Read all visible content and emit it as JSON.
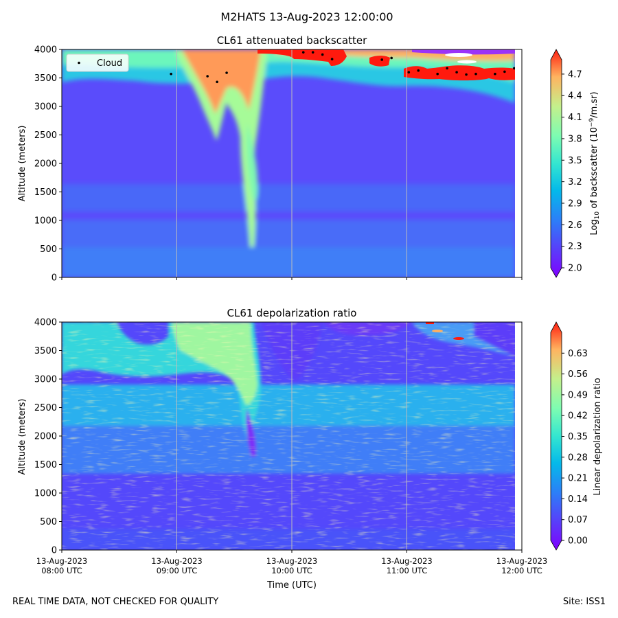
{
  "figure_title": "M2HATS 13-Aug-2023 12:00:00",
  "footer": {
    "left": "REAL TIME DATA, NOT CHECKED FOR QUALITY",
    "right": "Site: ISS1"
  },
  "chart_data": [
    {
      "type": "heatmap",
      "title": "CL61 attenuated backscatter",
      "ylabel": "Altitude (meters)",
      "ylim": [
        0,
        4000
      ],
      "yticks": [
        "0",
        "500",
        "1000",
        "1500",
        "2000",
        "2500",
        "3000",
        "3500",
        "4000"
      ],
      "x_start": "2023-08-13T08:00:00Z",
      "x_end": "2023-08-13T12:00:00Z",
      "data_end": "2023-08-13T11:56:00Z",
      "grid": "vertical lines at each hour",
      "legend": {
        "entries": [
          "Cloud"
        ],
        "position": "upper-left"
      },
      "colorbar": {
        "label_prefix": "Log",
        "label_sub": "10",
        "label_mid": " of backscatter (10",
        "label_sup": "−9",
        "label_suffix": "/m.sr)",
        "range": [
          2.0,
          4.9
        ],
        "ticks": [
          "2.0",
          "2.3",
          "2.6",
          "2.9",
          "3.2",
          "3.5",
          "3.8",
          "4.1",
          "4.4",
          "4.7"
        ],
        "colormap": "rainbow"
      },
      "cloud_points": [
        {
          "t": "2023-08-13T08:57:00Z",
          "alt": 3570
        },
        {
          "t": "2023-08-13T09:16:00Z",
          "alt": 3530
        },
        {
          "t": "2023-08-13T09:21:00Z",
          "alt": 3430
        },
        {
          "t": "2023-08-13T09:26:00Z",
          "alt": 3590
        },
        {
          "t": "2023-08-13T10:06:00Z",
          "alt": 3950
        },
        {
          "t": "2023-08-13T10:11:00Z",
          "alt": 3950
        },
        {
          "t": "2023-08-13T10:16:00Z",
          "alt": 3910
        },
        {
          "t": "2023-08-13T10:21:00Z",
          "alt": 3830
        },
        {
          "t": "2023-08-13T10:47:00Z",
          "alt": 3820
        },
        {
          "t": "2023-08-13T10:52:00Z",
          "alt": 3850
        },
        {
          "t": "2023-08-13T11:01:00Z",
          "alt": 3600
        },
        {
          "t": "2023-08-13T11:06:00Z",
          "alt": 3630
        },
        {
          "t": "2023-08-13T11:16:00Z",
          "alt": 3570
        },
        {
          "t": "2023-08-13T11:21:00Z",
          "alt": 3670
        },
        {
          "t": "2023-08-13T11:26:00Z",
          "alt": 3600
        },
        {
          "t": "2023-08-13T11:31:00Z",
          "alt": 3560
        },
        {
          "t": "2023-08-13T11:36:00Z",
          "alt": 3570
        },
        {
          "t": "2023-08-13T11:46:00Z",
          "alt": 3570
        },
        {
          "t": "2023-08-13T11:51:00Z",
          "alt": 3610
        },
        {
          "t": "2023-08-13T11:56:00Z",
          "alt": 3670
        }
      ]
    },
    {
      "type": "heatmap",
      "title": "CL61 depolarization ratio",
      "xlabel": "Time (UTC)",
      "ylabel": "Altitude (meters)",
      "ylim": [
        0,
        4000
      ],
      "yticks": [
        "0",
        "500",
        "1000",
        "1500",
        "2000",
        "2500",
        "3000",
        "3500",
        "4000"
      ],
      "xticks": [
        {
          "date": "13-Aug-2023",
          "time": "08:00 UTC"
        },
        {
          "date": "13-Aug-2023",
          "time": "09:00 UTC"
        },
        {
          "date": "13-Aug-2023",
          "time": "10:00 UTC"
        },
        {
          "date": "13-Aug-2023",
          "time": "11:00 UTC"
        },
        {
          "date": "13-Aug-2023",
          "time": "12:00 UTC"
        }
      ],
      "grid": "vertical lines at each hour",
      "colorbar": {
        "label": "Linear depolarization ratio",
        "range": [
          0.0,
          0.7
        ],
        "ticks": [
          "0.00",
          "0.07",
          "0.14",
          "0.21",
          "0.28",
          "0.35",
          "0.42",
          "0.49",
          "0.56",
          "0.63"
        ],
        "colormap": "rainbow"
      }
    }
  ]
}
